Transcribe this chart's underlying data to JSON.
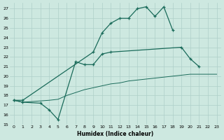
{
  "xlabel": "Humidex (Indice chaleur)",
  "bg_color": "#cde8e0",
  "grid_color": "#aecfc8",
  "line_color": "#1a6b5a",
  "xlim": [
    -0.5,
    23.5
  ],
  "ylim": [
    15,
    27.6
  ],
  "yticks": [
    15,
    16,
    17,
    18,
    19,
    20,
    21,
    22,
    23,
    24,
    25,
    26,
    27
  ],
  "xticks": [
    0,
    1,
    2,
    3,
    4,
    5,
    6,
    7,
    8,
    9,
    10,
    11,
    12,
    13,
    14,
    15,
    16,
    17,
    18,
    19,
    20,
    21,
    22,
    23
  ],
  "line1_x": [
    0,
    1,
    9,
    10,
    11,
    12,
    13,
    14,
    15,
    16,
    17,
    18
  ],
  "line1_y": [
    17.5,
    17.5,
    22.5,
    24.5,
    25.5,
    26.0,
    26.0,
    27.0,
    27.2,
    26.2,
    27.2,
    24.8
  ],
  "line2_x": [
    0,
    1,
    3,
    4,
    5,
    7,
    8,
    9,
    10,
    11,
    19,
    20,
    21
  ],
  "line2_y": [
    17.5,
    17.3,
    17.2,
    16.5,
    15.5,
    21.5,
    21.2,
    21.2,
    22.3,
    22.5,
    23.0,
    21.8,
    21.0
  ],
  "line3_x": [
    0,
    1,
    4,
    5,
    6,
    7,
    8,
    9,
    10,
    11,
    12,
    13,
    14,
    15,
    16,
    17,
    18,
    19,
    20,
    21,
    22,
    23
  ],
  "line3_y": [
    17.5,
    17.3,
    17.5,
    17.6,
    18.0,
    18.3,
    18.6,
    18.8,
    19.0,
    19.2,
    19.3,
    19.5,
    19.6,
    19.7,
    19.8,
    19.9,
    20.0,
    20.1,
    20.2,
    20.2,
    20.2,
    20.2
  ]
}
